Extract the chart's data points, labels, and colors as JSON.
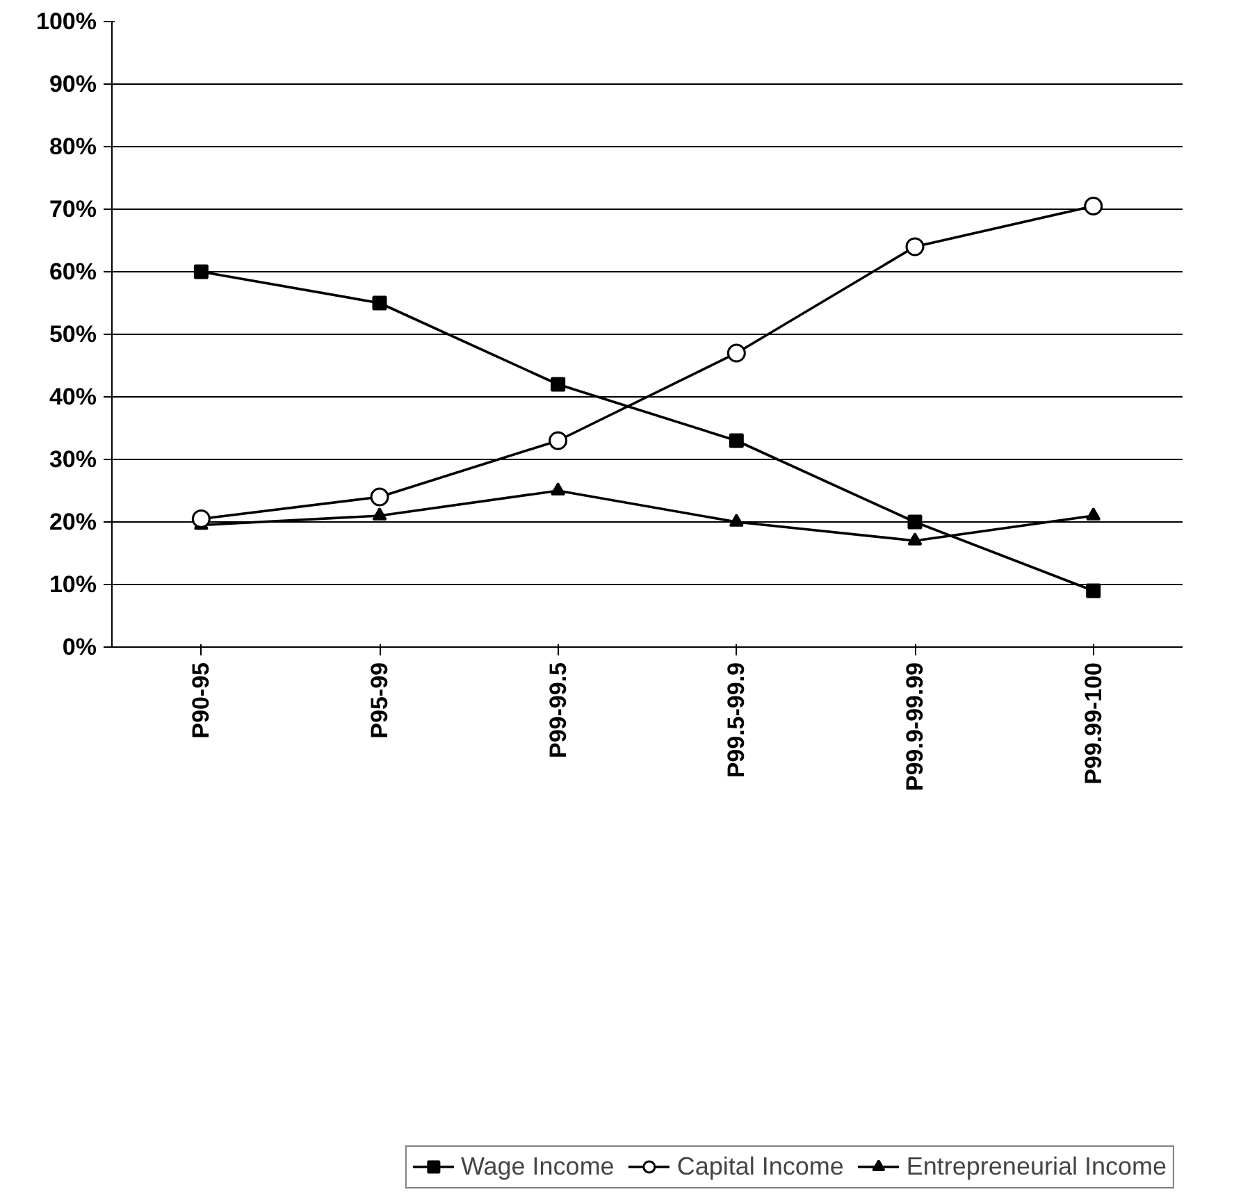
{
  "chart_data": {
    "type": "line",
    "categories": [
      "P90-95",
      "P95-99",
      "P99-99.5",
      "P99.5-99.9",
      "P99.9-99.99",
      "P99.99-100"
    ],
    "series": [
      {
        "name": "Wage Income",
        "color": "#000000",
        "marker": "square",
        "values": [
          60,
          55,
          42,
          33,
          20,
          9
        ]
      },
      {
        "name": "Capital Income",
        "color": "#000000",
        "marker": "circle",
        "values": [
          20.5,
          24,
          33,
          47,
          64,
          70.5
        ]
      },
      {
        "name": "Entrepreneurial Income",
        "color": "#000000",
        "marker": "triangle",
        "values": [
          19.5,
          21,
          25,
          20,
          17,
          21
        ]
      }
    ],
    "ylim": [
      0,
      100
    ],
    "yticks": [
      {
        "value": 0,
        "label": "0%"
      },
      {
        "value": 10,
        "label": "10%"
      },
      {
        "value": 20,
        "label": "20%"
      },
      {
        "value": 30,
        "label": "30%"
      },
      {
        "value": 40,
        "label": "40%"
      },
      {
        "value": 50,
        "label": "50%"
      },
      {
        "value": 60,
        "label": "60%"
      },
      {
        "value": 70,
        "label": "70%"
      },
      {
        "value": 80,
        "label": "80%"
      },
      {
        "value": 90,
        "label": "90%"
      },
      {
        "value": 100,
        "label": "100%"
      }
    ],
    "grid": "y",
    "legend": "bottom",
    "line_style": "solid"
  }
}
